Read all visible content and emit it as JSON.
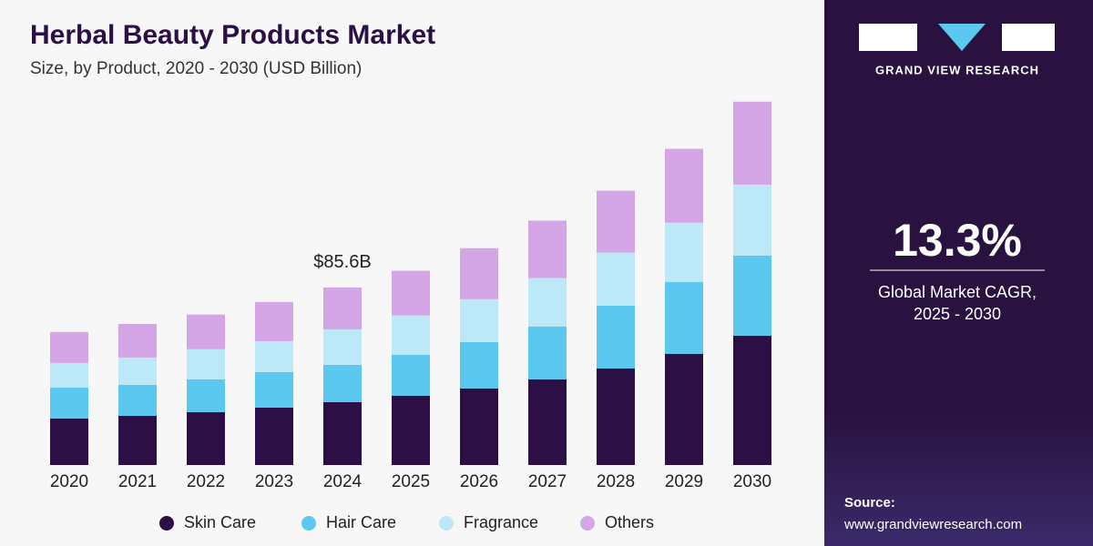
{
  "chart_data": {
    "type": "stacked_bar",
    "title": "Herbal Beauty Products Market",
    "subtitle": "Size, by Product, 2020 - 2030 (USD Billion)",
    "categories": [
      "2020",
      "2021",
      "2022",
      "2023",
      "2024",
      "2025",
      "2026",
      "2027",
      "2028",
      "2029",
      "2030"
    ],
    "series": [
      {
        "name": "Skin Care",
        "color": "#2b0f45",
        "values": [
          22.4,
          23.7,
          25.5,
          27.7,
          30.3,
          33.4,
          36.9,
          41.3,
          46.5,
          53.6,
          62.3
        ]
      },
      {
        "name": "Hair Care",
        "color": "#5bc8f0",
        "values": [
          14.9,
          14.9,
          15.8,
          17.1,
          18.0,
          19.8,
          22.4,
          25.5,
          30.3,
          34.7,
          38.6
        ]
      },
      {
        "name": "Fragrance",
        "color": "#bde8f7",
        "values": [
          11.9,
          13.2,
          14.5,
          14.9,
          17.1,
          18.9,
          20.6,
          23.3,
          25.5,
          28.5,
          34.2
        ]
      },
      {
        "name": "Others",
        "color": "#d4a6e6",
        "values": [
          14.9,
          16.2,
          16.7,
          18.9,
          20.2,
          21.5,
          24.6,
          27.7,
          29.9,
          35.6,
          40.0
        ]
      }
    ],
    "annotation": {
      "category": "2024",
      "value": 85.6,
      "label": "$85.6B"
    }
  },
  "sidebar": {
    "brand": "GRAND VIEW RESEARCH",
    "cagr": "13.3%",
    "cagr_caption": [
      "Global Market CAGR,",
      "2025 - 2030"
    ],
    "source_label": "Source:",
    "source_url": "www.grandviewresearch.com"
  }
}
